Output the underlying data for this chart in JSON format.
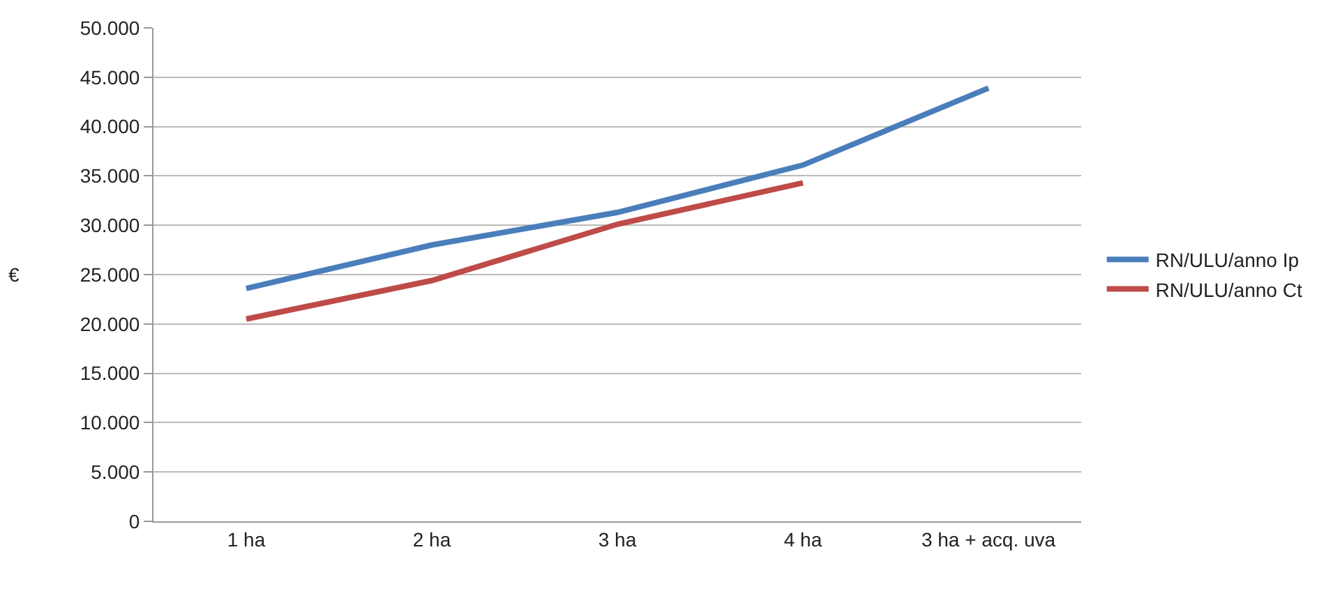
{
  "chart_data": {
    "type": "line",
    "ylabel": "€",
    "categories": [
      "1 ha",
      "2 ha",
      "3 ha",
      "4 ha",
      "3 ha + acq. uva"
    ],
    "series": [
      {
        "name": "RN/ULU/anno Ip",
        "color": "#4a7ebb",
        "values": [
          23600,
          28000,
          31300,
          36100,
          43900
        ]
      },
      {
        "name": "RN/ULU/anno Ct",
        "color": "#be4b48",
        "values": [
          20500,
          24400,
          30100,
          34300,
          null
        ]
      }
    ],
    "ylim": [
      0,
      50000
    ],
    "yticks": [
      0,
      {
        "value": 5000,
        "label": "5.000"
      },
      {
        "value": 10000,
        "label": "10.000"
      },
      {
        "value": 15000,
        "label": "15.000"
      },
      {
        "value": 20000,
        "label": "20.000"
      },
      {
        "value": 25000,
        "label": "25.000"
      },
      {
        "value": 30000,
        "label": "30.000"
      },
      {
        "value": 35000,
        "label": "35.000"
      },
      {
        "value": 40000,
        "label": "40.000"
      },
      {
        "value": 45000,
        "label": "45.000"
      },
      {
        "value": 50000,
        "label": "50.000"
      }
    ],
    "grid": "y",
    "legend": "right",
    "marker": "none",
    "line_style": "solid"
  }
}
